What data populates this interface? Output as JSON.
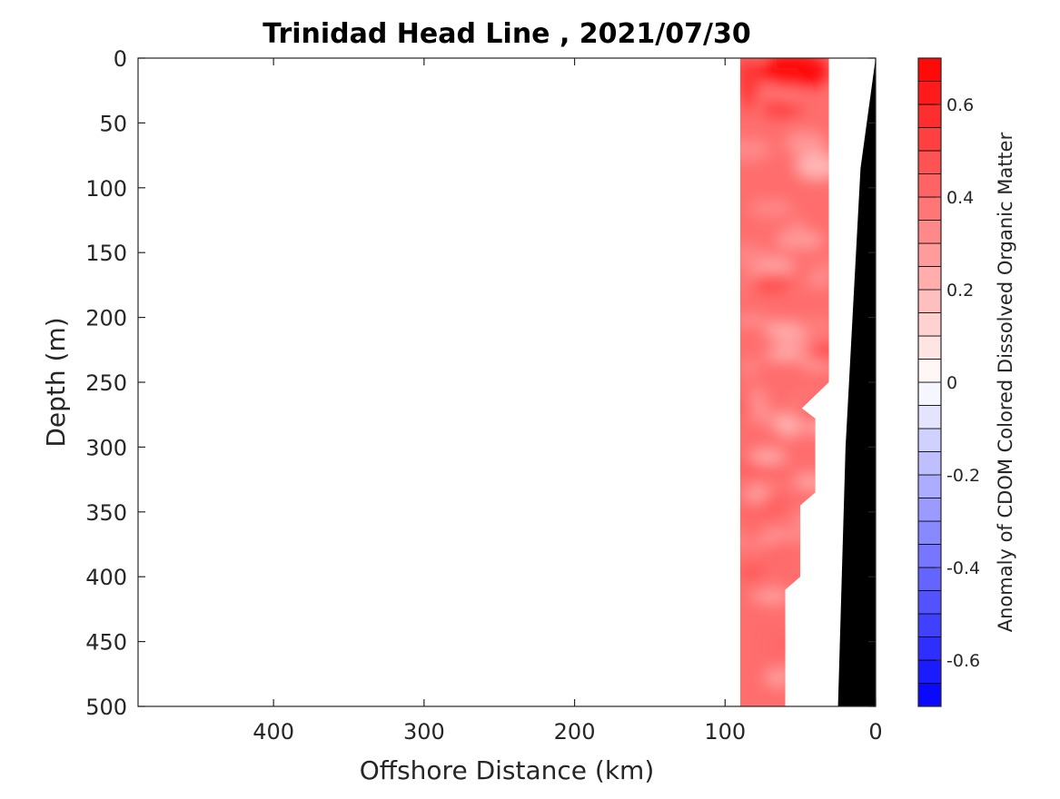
{
  "chart_data": {
    "type": "heatmap",
    "title": "Trinidad Head Line , 2021/07/30",
    "xlabel": "Offshore Distance (km)",
    "ylabel": "Depth (m)",
    "colorbar_label": "Anomaly of CDOM Colored Dissolved Organic Matter",
    "xlim": [
      490,
      0
    ],
    "ylim": [
      500,
      0
    ],
    "x_reversed": true,
    "y_reversed": true,
    "xticks": [
      400,
      300,
      200,
      100,
      0
    ],
    "xtick_labels": [
      "400",
      "300",
      "200",
      "100",
      "0"
    ],
    "yticks": [
      0,
      50,
      100,
      150,
      200,
      250,
      300,
      350,
      400,
      450,
      500
    ],
    "ytick_labels": [
      "0",
      "50",
      "100",
      "150",
      "200",
      "250",
      "300",
      "350",
      "400",
      "450",
      "500"
    ],
    "colorbar": {
      "min": -0.7,
      "max": 0.7,
      "levels": 28,
      "ticks": [
        0.6,
        0.4,
        0.2,
        0,
        -0.2,
        -0.4,
        -0.6
      ],
      "tick_labels": [
        "0.6",
        "0.4",
        "0.2",
        "0",
        "-0.2",
        "-0.4",
        "-0.6"
      ],
      "colormap": "blue-white-red",
      "color_negative": "#0000ff",
      "color_zero": "#ffffff",
      "color_positive": "#ff0000"
    },
    "data_region": {
      "x_range_km": [
        31,
        90
      ],
      "depth_range_m": [
        0,
        500
      ],
      "anomaly_typical": 0.4,
      "anomaly_max": 0.7,
      "anomaly_min": 0.15
    },
    "data_extent_boundary": [
      {
        "x": 31,
        "depth": 0
      },
      {
        "x": 31,
        "depth": 250
      },
      {
        "x": 49,
        "depth": 270
      },
      {
        "x": 40,
        "depth": 278
      },
      {
        "x": 40,
        "depth": 335
      },
      {
        "x": 50,
        "depth": 345
      },
      {
        "x": 50,
        "depth": 400
      },
      {
        "x": 60,
        "depth": 410
      },
      {
        "x": 60,
        "depth": 500
      }
    ],
    "bathymetry": {
      "color": "#000000",
      "points": [
        {
          "x": 0,
          "depth": 0
        },
        {
          "x": 10,
          "depth": 85
        },
        {
          "x": 20,
          "depth": 300
        },
        {
          "x": 25,
          "depth": 500
        }
      ]
    },
    "grid": false
  }
}
